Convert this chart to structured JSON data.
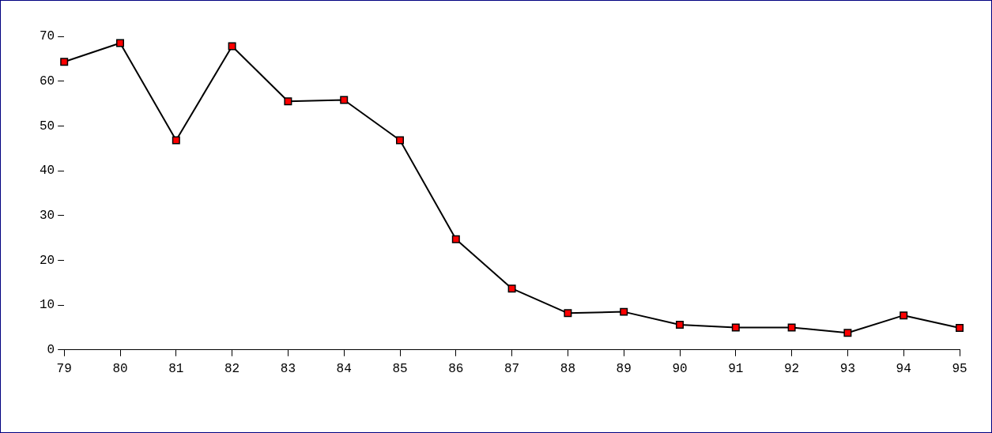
{
  "chart_data": {
    "type": "line",
    "categories": [
      "79",
      "80",
      "81",
      "82",
      "83",
      "84",
      "85",
      "86",
      "87",
      "88",
      "89",
      "90",
      "91",
      "92",
      "93",
      "94",
      "95"
    ],
    "series": [
      {
        "color": "#ff0000",
        "values": [
          64.3,
          68.5,
          46.8,
          67.8,
          55.5,
          55.8,
          46.8,
          24.7,
          13.7,
          8.2,
          8.5,
          5.6,
          5.0,
          5.0,
          3.8,
          7.7,
          4.9
        ]
      }
    ],
    "ylim": [
      0,
      70
    ],
    "yticks": [
      0,
      10,
      20,
      30,
      40,
      50,
      60,
      70
    ],
    "grid": false,
    "legend": false,
    "marker": "square",
    "line_style": "solid"
  }
}
